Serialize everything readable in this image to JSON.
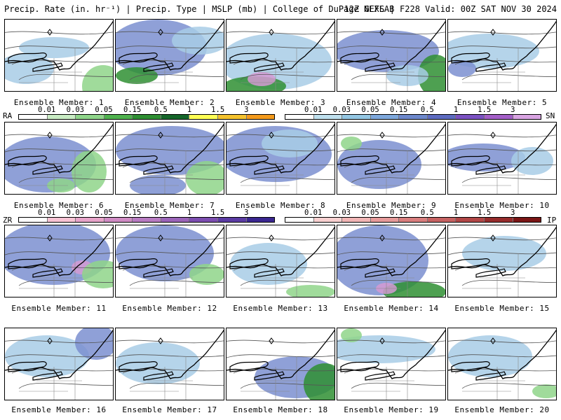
{
  "header": {
    "left": "Precip. Rate (in. hr⁻¹) | Precip. Type | MSLP (mb) | College of DuPage NEXLAB",
    "right": "12Z GEFS | F228 Valid: 00Z SAT NOV 30 2024"
  },
  "members": [
    "Ensemble Member: 1",
    "Ensemble Member: 2",
    "Ensemble Member: 3",
    "Ensemble Member: 4",
    "Ensemble Member: 5",
    "Ensemble Member: 6",
    "Ensemble Member: 7",
    "Ensemble Member: 8",
    "Ensemble Member: 9",
    "Ensemble Member: 10",
    "Ensemble Member: 11",
    "Ensemble Member: 12",
    "Ensemble Member: 13",
    "Ensemble Member: 14",
    "Ensemble Member: 15",
    "Ensemble Member: 16",
    "Ensemble Member: 17",
    "Ensemble Member: 18",
    "Ensemble Member: 19",
    "Ensemble Member: 20"
  ],
  "legends": {
    "rain": {
      "label": "RA",
      "ticks": [
        "0.01",
        "0.03",
        "0.05",
        "0.15",
        "0.5",
        "1",
        "1.5",
        "3"
      ],
      "colors": [
        "#ffffff",
        "#c9ecc4",
        "#8fd58a",
        "#4fb24e",
        "#2f8f33",
        "#15662a",
        "#ffff54",
        "#f4c22d",
        "#f39a1c"
      ]
    },
    "snow": {
      "label": "SN",
      "ticks": [
        "0.01",
        "0.03",
        "0.05",
        "0.15",
        "0.5",
        "1",
        "1.5",
        "3"
      ],
      "colors": [
        "#ffffff",
        "#bfe0ee",
        "#94c7e3",
        "#7ea8dc",
        "#6d88cc",
        "#5d6bc0",
        "#7b52c2",
        "#a45fc8",
        "#d9a4e2"
      ]
    },
    "freezing": {
      "label": "ZR",
      "ticks": [
        "0.01",
        "0.03",
        "0.05",
        "0.15",
        "0.5",
        "1",
        "1.5",
        "3"
      ],
      "colors": [
        "#ffffff",
        "#f8c3d4",
        "#e7a3c9",
        "#d08bc4",
        "#b87bc2",
        "#9b64b9",
        "#7c4db0",
        "#5b3ba3",
        "#3a2690"
      ]
    },
    "sleet": {
      "label": "IP",
      "ticks": [
        "0.01",
        "0.03",
        "0.05",
        "0.15",
        "0.5",
        "1",
        "1.5",
        "3"
      ],
      "colors": [
        "#ffffff",
        "#f8d0d0",
        "#f1b5b5",
        "#e69a9a",
        "#d97e7e",
        "#c66262",
        "#b14747",
        "#962c2c",
        "#7a1616"
      ]
    }
  },
  "colors": {
    "snow_light": "#a8cde6",
    "snow_mid": "#7b8fd0",
    "snow_heavy": "#6766b8",
    "rain_light": "#8fd58a",
    "rain_heavy": "#2f8f33",
    "mix": "#d59ad3"
  }
}
